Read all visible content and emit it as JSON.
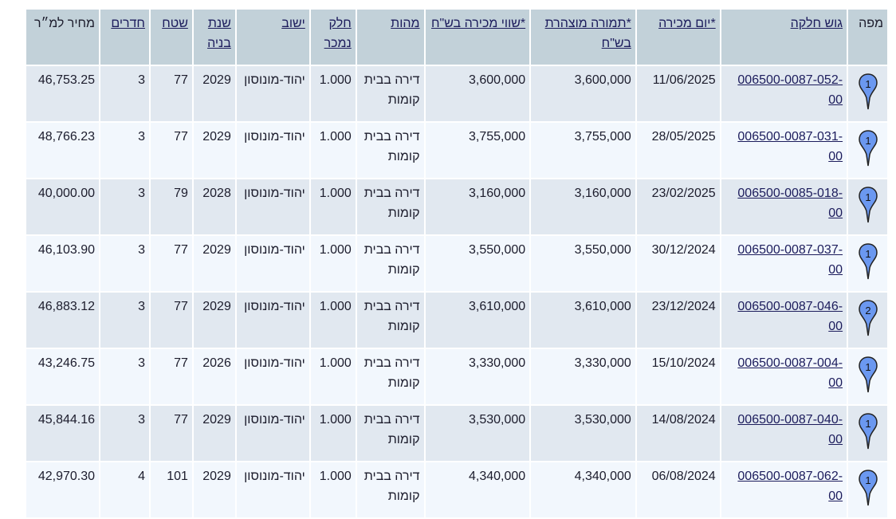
{
  "pin_color": "#6b98f0",
  "headers": [
    {
      "label": "מפה",
      "link": false
    },
    {
      "label": "גוש חלקה",
      "link": true
    },
    {
      "label": "*יום מכירה",
      "link": true
    },
    {
      "label": "*תמורה מוצהרת בש\"ח",
      "link": true
    },
    {
      "label": "*שווי מכירה בש\"ח",
      "link": true
    },
    {
      "label": "מהות",
      "link": true
    },
    {
      "label": "חלק נמכר",
      "link": true
    },
    {
      "label": "ישוב",
      "link": true
    },
    {
      "label": "שנת בניה",
      "link": true
    },
    {
      "label": "שטח",
      "link": true
    },
    {
      "label": "חדרים",
      "link": true
    },
    {
      "label": "מחיר למ״ר",
      "link": false
    }
  ],
  "rows": [
    {
      "pin": "1",
      "parcel": "006500-0087-052-00",
      "date": "11/06/2025",
      "declared": "3,600,000",
      "value": "3,600,000",
      "type": "דירה בבית קומות",
      "share": "1.000",
      "city": "יהוד-מונוסון",
      "year": "2029",
      "area": "77",
      "rooms": "3",
      "ppm": "46,753.25"
    },
    {
      "pin": "1",
      "parcel": "006500-0087-031-00",
      "date": "28/05/2025",
      "declared": "3,755,000",
      "value": "3,755,000",
      "type": "דירה בבית קומות",
      "share": "1.000",
      "city": "יהוד-מונוסון",
      "year": "2029",
      "area": "77",
      "rooms": "3",
      "ppm": "48,766.23"
    },
    {
      "pin": "1",
      "parcel": "006500-0085-018-00",
      "date": "23/02/2025",
      "declared": "3,160,000",
      "value": "3,160,000",
      "type": "דירה בבית קומות",
      "share": "1.000",
      "city": "יהוד-מונוסון",
      "year": "2028",
      "area": "79",
      "rooms": "3",
      "ppm": "40,000.00"
    },
    {
      "pin": "1",
      "parcel": "006500-0087-037-00",
      "date": "30/12/2024",
      "declared": "3,550,000",
      "value": "3,550,000",
      "type": "דירה בבית קומות",
      "share": "1.000",
      "city": "יהוד-מונוסון",
      "year": "2029",
      "area": "77",
      "rooms": "3",
      "ppm": "46,103.90"
    },
    {
      "pin": "2",
      "parcel": "006500-0087-046-00",
      "date": "23/12/2024",
      "declared": "3,610,000",
      "value": "3,610,000",
      "type": "דירה בבית קומות",
      "share": "1.000",
      "city": "יהוד-מונוסון",
      "year": "2029",
      "area": "77",
      "rooms": "3",
      "ppm": "46,883.12"
    },
    {
      "pin": "1",
      "parcel": "006500-0087-004-00",
      "date": "15/10/2024",
      "declared": "3,330,000",
      "value": "3,330,000",
      "type": "דירה בבית קומות",
      "share": "1.000",
      "city": "יהוד-מונוסון",
      "year": "2026",
      "area": "77",
      "rooms": "3",
      "ppm": "43,246.75"
    },
    {
      "pin": "1",
      "parcel": "006500-0087-040-00",
      "date": "14/08/2024",
      "declared": "3,530,000",
      "value": "3,530,000",
      "type": "דירה בבית קומות",
      "share": "1.000",
      "city": "יהוד-מונוסון",
      "year": "2029",
      "area": "77",
      "rooms": "3",
      "ppm": "45,844.16"
    },
    {
      "pin": "1",
      "parcel": "006500-0087-062-00",
      "date": "06/08/2024",
      "declared": "4,340,000",
      "value": "4,340,000",
      "type": "דירה בבית קומות",
      "share": "1.000",
      "city": "יהוד-מונוסון",
      "year": "2029",
      "area": "101",
      "rooms": "4",
      "ppm": "42,970.30"
    }
  ]
}
